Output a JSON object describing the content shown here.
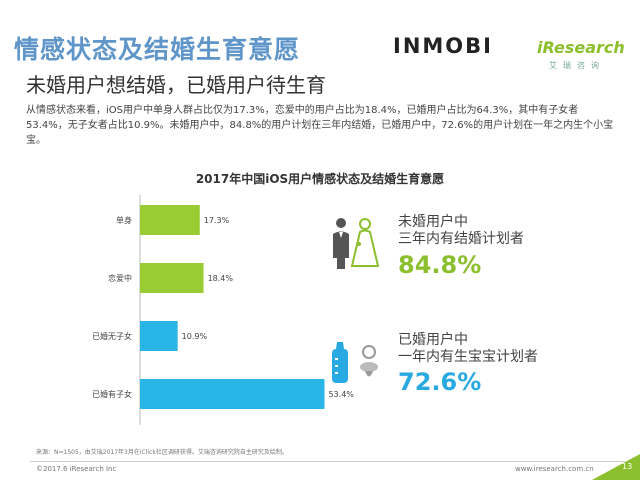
{
  "header": {
    "title": "情感状态及结婚生育意愿",
    "subtitle": "未婚用户想结婚，已婚用户待生育",
    "description": "从情感状态来看，iOS用户中单身人群占比仅为17.3%，恋爱中的用户占比为18.4%，已婚用户占比为64.3%，其中有子女者53.4%，无子女者占比10.9%。未婚用户中，84.8%的用户计划在三年内结婚，已婚用户中，72.6%的用户计划在一年之内生个小宝宝。"
  },
  "logos": {
    "inmobi": "INMOBI",
    "iresearch": "iResearch",
    "iresearch_sub": "艾瑞咨询"
  },
  "chart_data": {
    "type": "bar",
    "orientation": "horizontal",
    "title": "2017年中国iOS用户情感状态及结婚生育意愿",
    "categories": [
      "单身",
      "恋爱中",
      "已婚无子女",
      "已婚有子女"
    ],
    "values": [
      17.3,
      18.4,
      10.9,
      53.4
    ],
    "value_labels": [
      "17.3%",
      "18.4%",
      "10.9%",
      "53.4%"
    ],
    "colors": [
      "#99cc33",
      "#99cc33",
      "#29b6e6",
      "#29b6e6"
    ],
    "xlim": [
      0,
      55
    ],
    "unit": "%"
  },
  "stats": [
    {
      "line1": "未婚用户中",
      "line2": "三年内有结婚计划者",
      "value": "84.8%",
      "color": "#8cbf2e",
      "icon": "wedding-couple-icon"
    },
    {
      "line1": "已婚用户中",
      "line2": "一年内有生宝宝计划者",
      "value": "72.6%",
      "color": "#29a9e1",
      "icon": "baby-bottle-icon"
    }
  ],
  "footer": {
    "source": "来源：N=1505，由艾瑞2017年3月在iClick社区调研获得。艾瑞咨询研究院自主研究及绘制。",
    "copyright": "©2017.6 iResearch Inc",
    "website": "www.iresearch.com.cn",
    "page": "13"
  },
  "colors": {
    "title": "#5f95c9",
    "green": "#99cc33",
    "blue": "#29b6e6"
  }
}
